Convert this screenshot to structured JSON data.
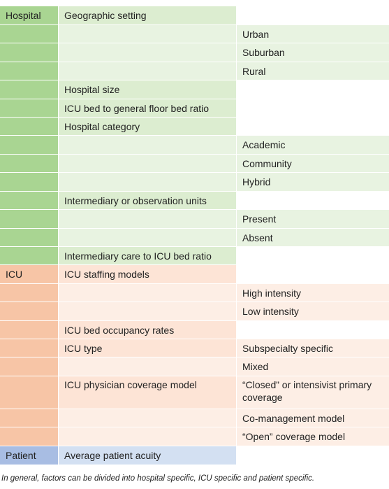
{
  "colors": {
    "hospital_dark": "#a9d592",
    "hospital_light": "#dcedd0",
    "hospital_lighter": "#e8f3e1",
    "icu_dark": "#f7c5a6",
    "icu_light": "#fde4d6",
    "icu_lighter": "#fdeee5",
    "patient_dark": "#a8bde3",
    "patient_light": "#d3e0f2",
    "white": "#ffffff"
  },
  "rows": [
    {
      "category": "Hospital",
      "factor": "Geographic setting",
      "option": ""
    },
    {
      "category": "",
      "factor": "",
      "option": "Urban"
    },
    {
      "category": "",
      "factor": "",
      "option": "Suburban"
    },
    {
      "category": "",
      "factor": "",
      "option": "Rural"
    },
    {
      "category": "",
      "factor": "Hospital size",
      "option": ""
    },
    {
      "category": "",
      "factor": "ICU bed to general floor bed ratio",
      "option": ""
    },
    {
      "category": "",
      "factor": "Hospital category",
      "option": ""
    },
    {
      "category": "",
      "factor": "",
      "option": "Academic"
    },
    {
      "category": "",
      "factor": "",
      "option": "Community"
    },
    {
      "category": "",
      "factor": "",
      "option": "Hybrid"
    },
    {
      "category": "",
      "factor": "Intermediary or observation units",
      "option": ""
    },
    {
      "category": "",
      "factor": "",
      "option": "Present"
    },
    {
      "category": "",
      "factor": "",
      "option": "Absent"
    },
    {
      "category": "",
      "factor": "Intermediary care to ICU bed ratio",
      "option": ""
    },
    {
      "category": "ICU",
      "factor": "ICU staffing models",
      "option": ""
    },
    {
      "category": "",
      "factor": "",
      "option": "High intensity"
    },
    {
      "category": "",
      "factor": "",
      "option": "Low intensity"
    },
    {
      "category": "",
      "factor": "ICU bed occupancy rates",
      "option": ""
    },
    {
      "category": "",
      "factor": "ICU type",
      "option": "Subspecialty specific"
    },
    {
      "category": "",
      "factor": "",
      "option": "Mixed"
    },
    {
      "category": "",
      "factor": "ICU physician coverage model",
      "option": "“Closed” or intensivist primary coverage"
    },
    {
      "category": "",
      "factor": "",
      "option": "Co-management model"
    },
    {
      "category": "",
      "factor": "",
      "option": "“Open” coverage model"
    },
    {
      "category": "Patient",
      "factor": "Average patient acuity",
      "option": ""
    }
  ],
  "footnote": "In general, factors can be divided into hospital specific, ICU specific and patient specific."
}
